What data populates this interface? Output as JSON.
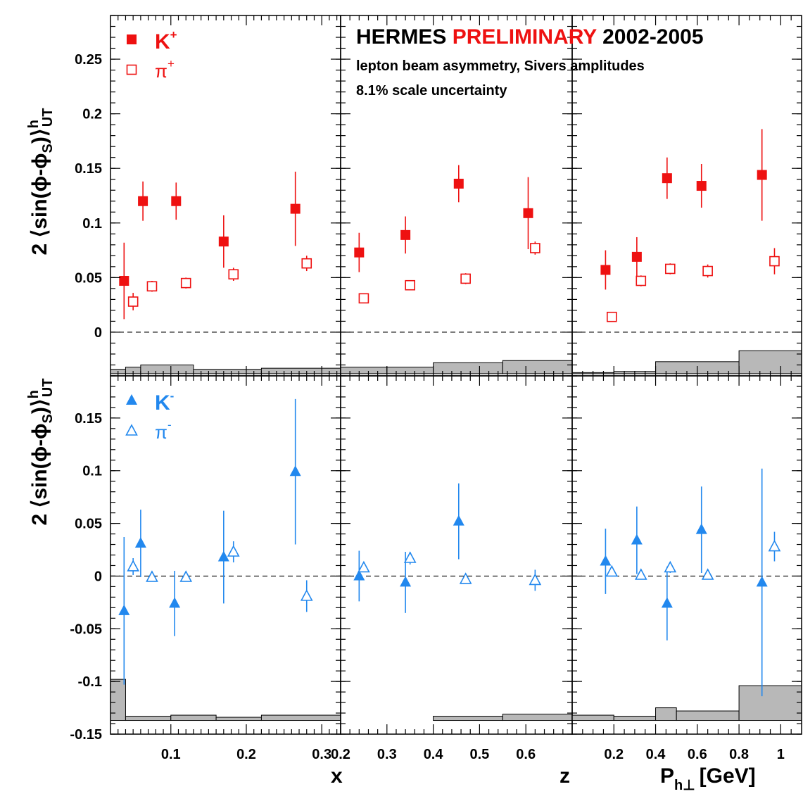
{
  "chart_data": {
    "type": "scatter",
    "title_parts": [
      "HERMES",
      "PRELIMINARY",
      "2002-2005"
    ],
    "subtitle": "lepton beam asymmetry, Sivers amplitudes",
    "note": "8.1% scale uncertainty",
    "ylabel": "2 ⟨sin(ϕ-ϕ",
    "ylabel_sub": "S",
    "ylabel_end": ")⟩",
    "ylabel_sup": "h",
    "ylabel_sub2": "UT",
    "colors": {
      "positive": "#ee1111",
      "negative": "#2288ee",
      "band": "#b8b8b8"
    },
    "columns": [
      {
        "var": "x",
        "xlabel": "x",
        "xlim": [
          0.02,
          0.325
        ],
        "ticks": [
          "0.1",
          "0.2",
          "0.3"
        ],
        "tick_values": [
          0.1,
          0.2,
          0.3
        ],
        "minor": [
          0.03,
          0.04,
          0.05,
          0.06,
          0.07,
          0.08,
          0.09,
          0.11,
          0.12,
          0.13,
          0.14,
          0.15,
          0.16,
          0.17,
          0.18,
          0.19,
          0.21,
          0.22,
          0.23,
          0.24,
          0.25,
          0.26,
          0.27,
          0.28,
          0.29,
          0.31,
          0.32
        ]
      },
      {
        "var": "z",
        "xlabel": "z",
        "xlim": [
          0.2,
          0.7
        ],
        "ticks": [
          "0.2",
          "0.3",
          "0.4",
          "0.5",
          "0.6"
        ],
        "tick_values": [
          0.2,
          0.3,
          0.4,
          0.5,
          0.6
        ],
        "minor": [
          0.22,
          0.24,
          0.26,
          0.28,
          0.32,
          0.34,
          0.36,
          0.38,
          0.42,
          0.44,
          0.46,
          0.48,
          0.52,
          0.54,
          0.56,
          0.58,
          0.62,
          0.64,
          0.66,
          0.68
        ]
      },
      {
        "var": "Ph",
        "xlabel": "P",
        "xlabel_sub": "h⊥",
        "xlabel_unit": "[GeV]",
        "xlim": [
          0.0,
          1.1
        ],
        "ticks": [
          "0.2",
          "0.4",
          "0.6",
          "0.8",
          "1"
        ],
        "tick_values": [
          0.2,
          0.4,
          0.6,
          0.8,
          1.0
        ],
        "minor": [
          0.05,
          0.1,
          0.15,
          0.25,
          0.3,
          0.35,
          0.45,
          0.5,
          0.55,
          0.65,
          0.7,
          0.75,
          0.85,
          0.9,
          0.95,
          1.05
        ]
      }
    ],
    "rows": [
      {
        "ylim": [
          -0.04,
          0.29
        ],
        "yticks": [
          "0",
          "0.05",
          "0.1",
          "0.15",
          "0.2",
          "0.25"
        ],
        "ytick_values": [
          0,
          0.05,
          0.1,
          0.15,
          0.2,
          0.25
        ],
        "legend": [
          {
            "label": "K",
            "sup": "+",
            "marker": "square-filled"
          },
          {
            "label": "π",
            "sup": "+",
            "marker": "square-open"
          }
        ],
        "bands_base": -0.038,
        "bands": [
          [
            [
              0.02,
              0.04,
              -0.034
            ],
            [
              0.04,
              0.06,
              -0.032
            ],
            [
              0.06,
              0.13,
              -0.03
            ],
            [
              0.13,
              0.22,
              -0.034
            ],
            [
              0.22,
              0.325,
              -0.033
            ]
          ],
          [
            [
              0.2,
              0.3,
              -0.032
            ],
            [
              0.3,
              0.4,
              -0.032
            ],
            [
              0.4,
              0.55,
              -0.028
            ],
            [
              0.55,
              0.7,
              -0.026
            ]
          ],
          [
            [
              0.0,
              0.2,
              -0.037
            ],
            [
              0.2,
              0.4,
              -0.036
            ],
            [
              0.4,
              0.8,
              -0.027
            ],
            [
              0.8,
              1.1,
              -0.017
            ]
          ]
        ],
        "series": [
          {
            "name": "K+",
            "marker": "square-filled",
            "points": [
              [
                [
                  0.038,
                  0.047,
                  0.035
                ],
                [
                  0.063,
                  0.12,
                  0.018
                ],
                [
                  0.107,
                  0.12,
                  0.017
                ],
                [
                  0.17,
                  0.083,
                  0.024
                ],
                [
                  0.265,
                  0.113,
                  0.034
                ]
              ],
              [
                [
                  0.24,
                  0.073,
                  0.018
                ],
                [
                  0.34,
                  0.089,
                  0.017
                ],
                [
                  0.455,
                  0.136,
                  0.017
                ],
                [
                  0.605,
                  0.109,
                  0.033
                ]
              ],
              [
                [
                  0.16,
                  0.057,
                  0.018
                ],
                [
                  0.31,
                  0.069,
                  0.018
                ],
                [
                  0.455,
                  0.141,
                  0.019
                ],
                [
                  0.62,
                  0.134,
                  0.02
                ],
                [
                  0.91,
                  0.144,
                  0.042
                ]
              ]
            ]
          },
          {
            "name": "π+",
            "marker": "square-open",
            "points": [
              [
                [
                  0.05,
                  0.028,
                  0.008
                ],
                [
                  0.075,
                  0.042,
                  0.005
                ],
                [
                  0.12,
                  0.045,
                  0.005
                ],
                [
                  0.183,
                  0.053,
                  0.006
                ],
                [
                  0.28,
                  0.063,
                  0.007
                ]
              ],
              [
                [
                  0.25,
                  0.031,
                  0.004
                ],
                [
                  0.35,
                  0.043,
                  0.004
                ],
                [
                  0.47,
                  0.049,
                  0.005
                ],
                [
                  0.62,
                  0.077,
                  0.006
                ]
              ],
              [
                [
                  0.19,
                  0.014,
                  0.003
                ],
                [
                  0.33,
                  0.047,
                  0.005
                ],
                [
                  0.47,
                  0.058,
                  0.005
                ],
                [
                  0.65,
                  0.056,
                  0.006
                ],
                [
                  0.97,
                  0.065,
                  0.012
                ]
              ]
            ]
          }
        ]
      },
      {
        "ylim": [
          -0.15,
          0.19
        ],
        "yticks": [
          "-0.15",
          "-0.1",
          "-0.05",
          "0",
          "0.05",
          "0.1",
          "0.15"
        ],
        "ytick_values": [
          -0.15,
          -0.1,
          -0.05,
          0,
          0.05,
          0.1,
          0.15
        ],
        "legend": [
          {
            "label": "K",
            "sup": "-",
            "marker": "triangle-filled"
          },
          {
            "label": "π",
            "sup": "-",
            "marker": "triangle-open"
          }
        ],
        "bands_base": -0.137,
        "bands": [
          [
            [
              0.02,
              0.04,
              -0.098
            ],
            [
              0.04,
              0.1,
              -0.133
            ],
            [
              0.1,
              0.16,
              -0.132
            ],
            [
              0.16,
              0.22,
              -0.134
            ],
            [
              0.22,
              0.325,
              -0.132
            ]
          ],
          [
            [
              0.2,
              0.4,
              -0.137
            ],
            [
              0.4,
              0.55,
              -0.133
            ],
            [
              0.55,
              0.7,
              -0.131
            ]
          ],
          [
            [
              0.0,
              0.2,
              -0.132
            ],
            [
              0.2,
              0.4,
              -0.133
            ],
            [
              0.4,
              0.5,
              -0.125
            ],
            [
              0.5,
              0.8,
              -0.128
            ],
            [
              0.8,
              1.1,
              -0.104
            ]
          ]
        ],
        "series": [
          {
            "name": "K-",
            "marker": "triangle-filled",
            "points": [
              [
                [
                  0.038,
                  -0.033,
                  0.07
                ],
                [
                  0.06,
                  0.031,
                  0.032
                ],
                [
                  0.105,
                  -0.026,
                  0.031
                ],
                [
                  0.17,
                  0.018,
                  0.044
                ],
                [
                  0.265,
                  0.099,
                  0.069
                ]
              ],
              [
                [
                  0.24,
                  0.0,
                  0.024
                ],
                [
                  0.34,
                  -0.006,
                  0.029
                ],
                [
                  0.455,
                  0.052,
                  0.036
                ]
              ],
              [
                [
                  0.16,
                  0.014,
                  0.031
                ],
                [
                  0.31,
                  0.034,
                  0.032
                ],
                [
                  0.455,
                  -0.026,
                  0.035
                ],
                [
                  0.62,
                  0.044,
                  0.041
                ],
                [
                  0.91,
                  -0.006,
                  0.108
                ]
              ]
            ]
          },
          {
            "name": "π-",
            "marker": "triangle-open",
            "points": [
              [
                [
                  0.05,
                  0.009,
                  0.008
                ],
                [
                  0.075,
                  -0.001,
                  0.004
                ],
                [
                  0.12,
                  -0.001,
                  0.004
                ],
                [
                  0.183,
                  0.023,
                  0.01
                ],
                [
                  0.28,
                  -0.019,
                  0.015
                ]
              ],
              [
                [
                  0.25,
                  0.008,
                  0.004
                ],
                [
                  0.35,
                  0.017,
                  0.006
                ],
                [
                  0.47,
                  -0.003,
                  0.004
                ],
                [
                  0.62,
                  -0.004,
                  0.01
                ]
              ],
              [
                [
                  0.19,
                  0.004,
                  0.004
                ],
                [
                  0.33,
                  0.001,
                  0.004
                ],
                [
                  0.47,
                  0.008,
                  0.005
                ],
                [
                  0.65,
                  0.001,
                  0.004
                ],
                [
                  0.97,
                  0.028,
                  0.014
                ]
              ]
            ]
          }
        ]
      }
    ]
  }
}
